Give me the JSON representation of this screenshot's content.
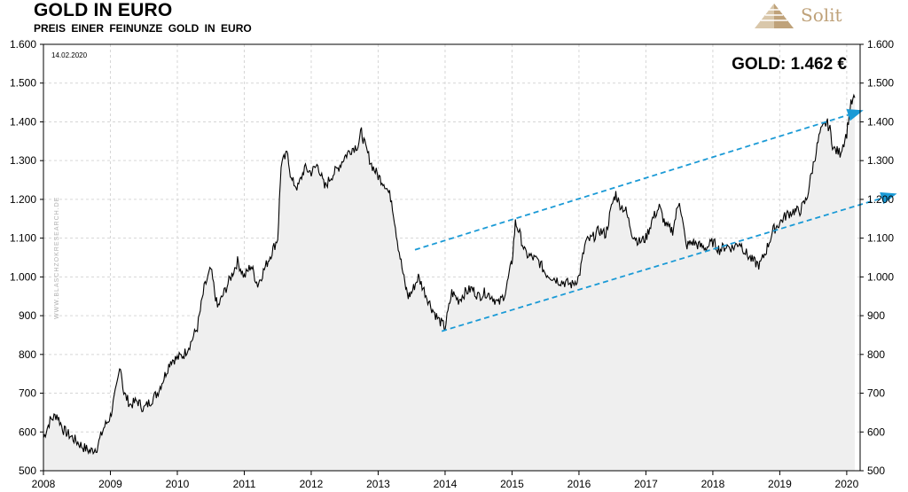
{
  "header": {
    "title": "GOLD IN EURO",
    "subtitle": "PREIS EINER FEINUNZE GOLD IN EURO",
    "brand": "Solit"
  },
  "chart_data": {
    "type": "area",
    "date_stamp": "14.02.2020",
    "annotation": "GOLD: 1.462 €",
    "watermark": "WWW.BLASCHZOKRESEARCH.DE",
    "xlim": [
      2008.0,
      2020.2
    ],
    "ylim": [
      500,
      1600
    ],
    "x_ticks": [
      2008,
      2009,
      2010,
      2011,
      2012,
      2013,
      2014,
      2015,
      2016,
      2017,
      2018,
      2019,
      2020
    ],
    "y_ticks": [
      500,
      600,
      700,
      800,
      900,
      1000,
      1100,
      1200,
      1300,
      1400,
      1500,
      1600
    ],
    "y_tick_labels": [
      "500",
      "600",
      "700",
      "800",
      "900",
      "1.000",
      "1.100",
      "1.200",
      "1.300",
      "1.400",
      "1.500",
      "1.600"
    ],
    "grid": true,
    "x": [
      2008.0,
      2008.1,
      2008.2,
      2008.3,
      2008.4,
      2008.5,
      2008.6,
      2008.7,
      2008.8,
      2008.9,
      2009.0,
      2009.1,
      2009.15,
      2009.2,
      2009.3,
      2009.4,
      2009.5,
      2009.6,
      2009.7,
      2009.8,
      2009.9,
      2010.0,
      2010.1,
      2010.2,
      2010.3,
      2010.4,
      2010.5,
      2010.6,
      2010.7,
      2010.8,
      2010.9,
      2011.0,
      2011.1,
      2011.2,
      2011.3,
      2011.4,
      2011.5,
      2011.55,
      2011.65,
      2011.7,
      2011.8,
      2011.9,
      2012.0,
      2012.1,
      2012.2,
      2012.3,
      2012.4,
      2012.5,
      2012.6,
      2012.7,
      2012.75,
      2012.8,
      2012.9,
      2013.0,
      2013.1,
      2013.2,
      2013.3,
      2013.4,
      2013.45,
      2013.5,
      2013.6,
      2013.7,
      2013.8,
      2013.9,
      2014.0,
      2014.1,
      2014.2,
      2014.3,
      2014.4,
      2014.5,
      2014.6,
      2014.7,
      2014.8,
      2014.9,
      2015.0,
      2015.05,
      2015.1,
      2015.2,
      2015.3,
      2015.4,
      2015.5,
      2015.6,
      2015.7,
      2015.8,
      2015.9,
      2016.0,
      2016.1,
      2016.2,
      2016.3,
      2016.4,
      2016.5,
      2016.55,
      2016.6,
      2016.7,
      2016.8,
      2016.9,
      2017.0,
      2017.1,
      2017.2,
      2017.3,
      2017.4,
      2017.5,
      2017.6,
      2017.7,
      2017.8,
      2017.9,
      2018.0,
      2018.1,
      2018.2,
      2018.3,
      2018.4,
      2018.5,
      2018.6,
      2018.7,
      2018.8,
      2018.9,
      2019.0,
      2019.1,
      2019.2,
      2019.3,
      2019.4,
      2019.5,
      2019.6,
      2019.7,
      2019.75,
      2019.8,
      2019.9,
      2020.0,
      2020.05,
      2020.12
    ],
    "y": [
      585,
      630,
      645,
      605,
      590,
      575,
      560,
      550,
      560,
      610,
      640,
      720,
      775,
      700,
      670,
      680,
      660,
      680,
      700,
      740,
      785,
      790,
      800,
      830,
      870,
      970,
      1020,
      920,
      960,
      1000,
      1040,
      1000,
      1030,
      980,
      1020,
      1060,
      1100,
      1290,
      1320,
      1250,
      1230,
      1280,
      1270,
      1290,
      1230,
      1260,
      1280,
      1310,
      1330,
      1340,
      1375,
      1340,
      1290,
      1260,
      1240,
      1200,
      1080,
      980,
      950,
      960,
      1000,
      960,
      920,
      890,
      870,
      960,
      940,
      960,
      970,
      950,
      960,
      950,
      930,
      960,
      1040,
      1140,
      1120,
      1060,
      1050,
      1040,
      1010,
      1000,
      990,
      985,
      980,
      1000,
      1090,
      1100,
      1120,
      1110,
      1190,
      1215,
      1190,
      1170,
      1110,
      1090,
      1100,
      1150,
      1180,
      1130,
      1120,
      1200,
      1080,
      1090,
      1080,
      1075,
      1090,
      1070,
      1080,
      1075,
      1090,
      1060,
      1040,
      1030,
      1070,
      1120,
      1140,
      1160,
      1170,
      1170,
      1200,
      1290,
      1370,
      1400,
      1380,
      1330,
      1320,
      1370,
      1440,
      1462
    ],
    "trend_lines": [
      {
        "x": [
          2013.55,
          2020.25
        ],
        "y": [
          1070,
          1430
        ]
      },
      {
        "x": [
          2013.95,
          2020.75
        ],
        "y": [
          860,
          1215
        ]
      }
    ],
    "colors": {
      "line": "#000000",
      "area": "#efefef",
      "trend": "#1a9ad6",
      "grid": "#d6d6d6",
      "logo": "#bfa27a"
    }
  }
}
